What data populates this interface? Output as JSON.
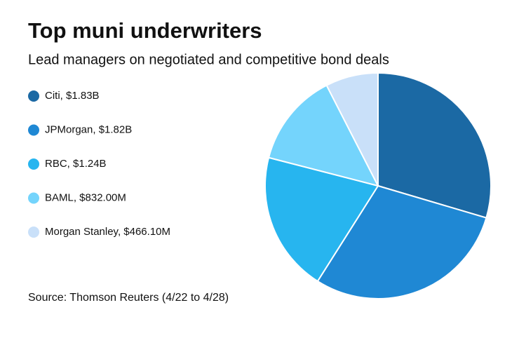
{
  "chart_data": {
    "type": "pie",
    "title": "Top muni underwriters",
    "subtitle": "Lead managers on negotiated and competitive bond deals",
    "source": "Source: Thomson Reuters (4/22 to 4/28)",
    "categories": [
      "Citi, $1.83B",
      "JPMorgan, $1.82B",
      "RBC, $1.24B",
      "BAML, $832.00M",
      "Morgan Stanley, $466.10M"
    ],
    "values": [
      1830000000,
      1820000000,
      1240000000,
      832000000,
      466100000
    ],
    "colors": [
      "#1b69a4",
      "#1f88d4",
      "#27b5ef",
      "#74d4fc",
      "#c9e0f9"
    ]
  }
}
